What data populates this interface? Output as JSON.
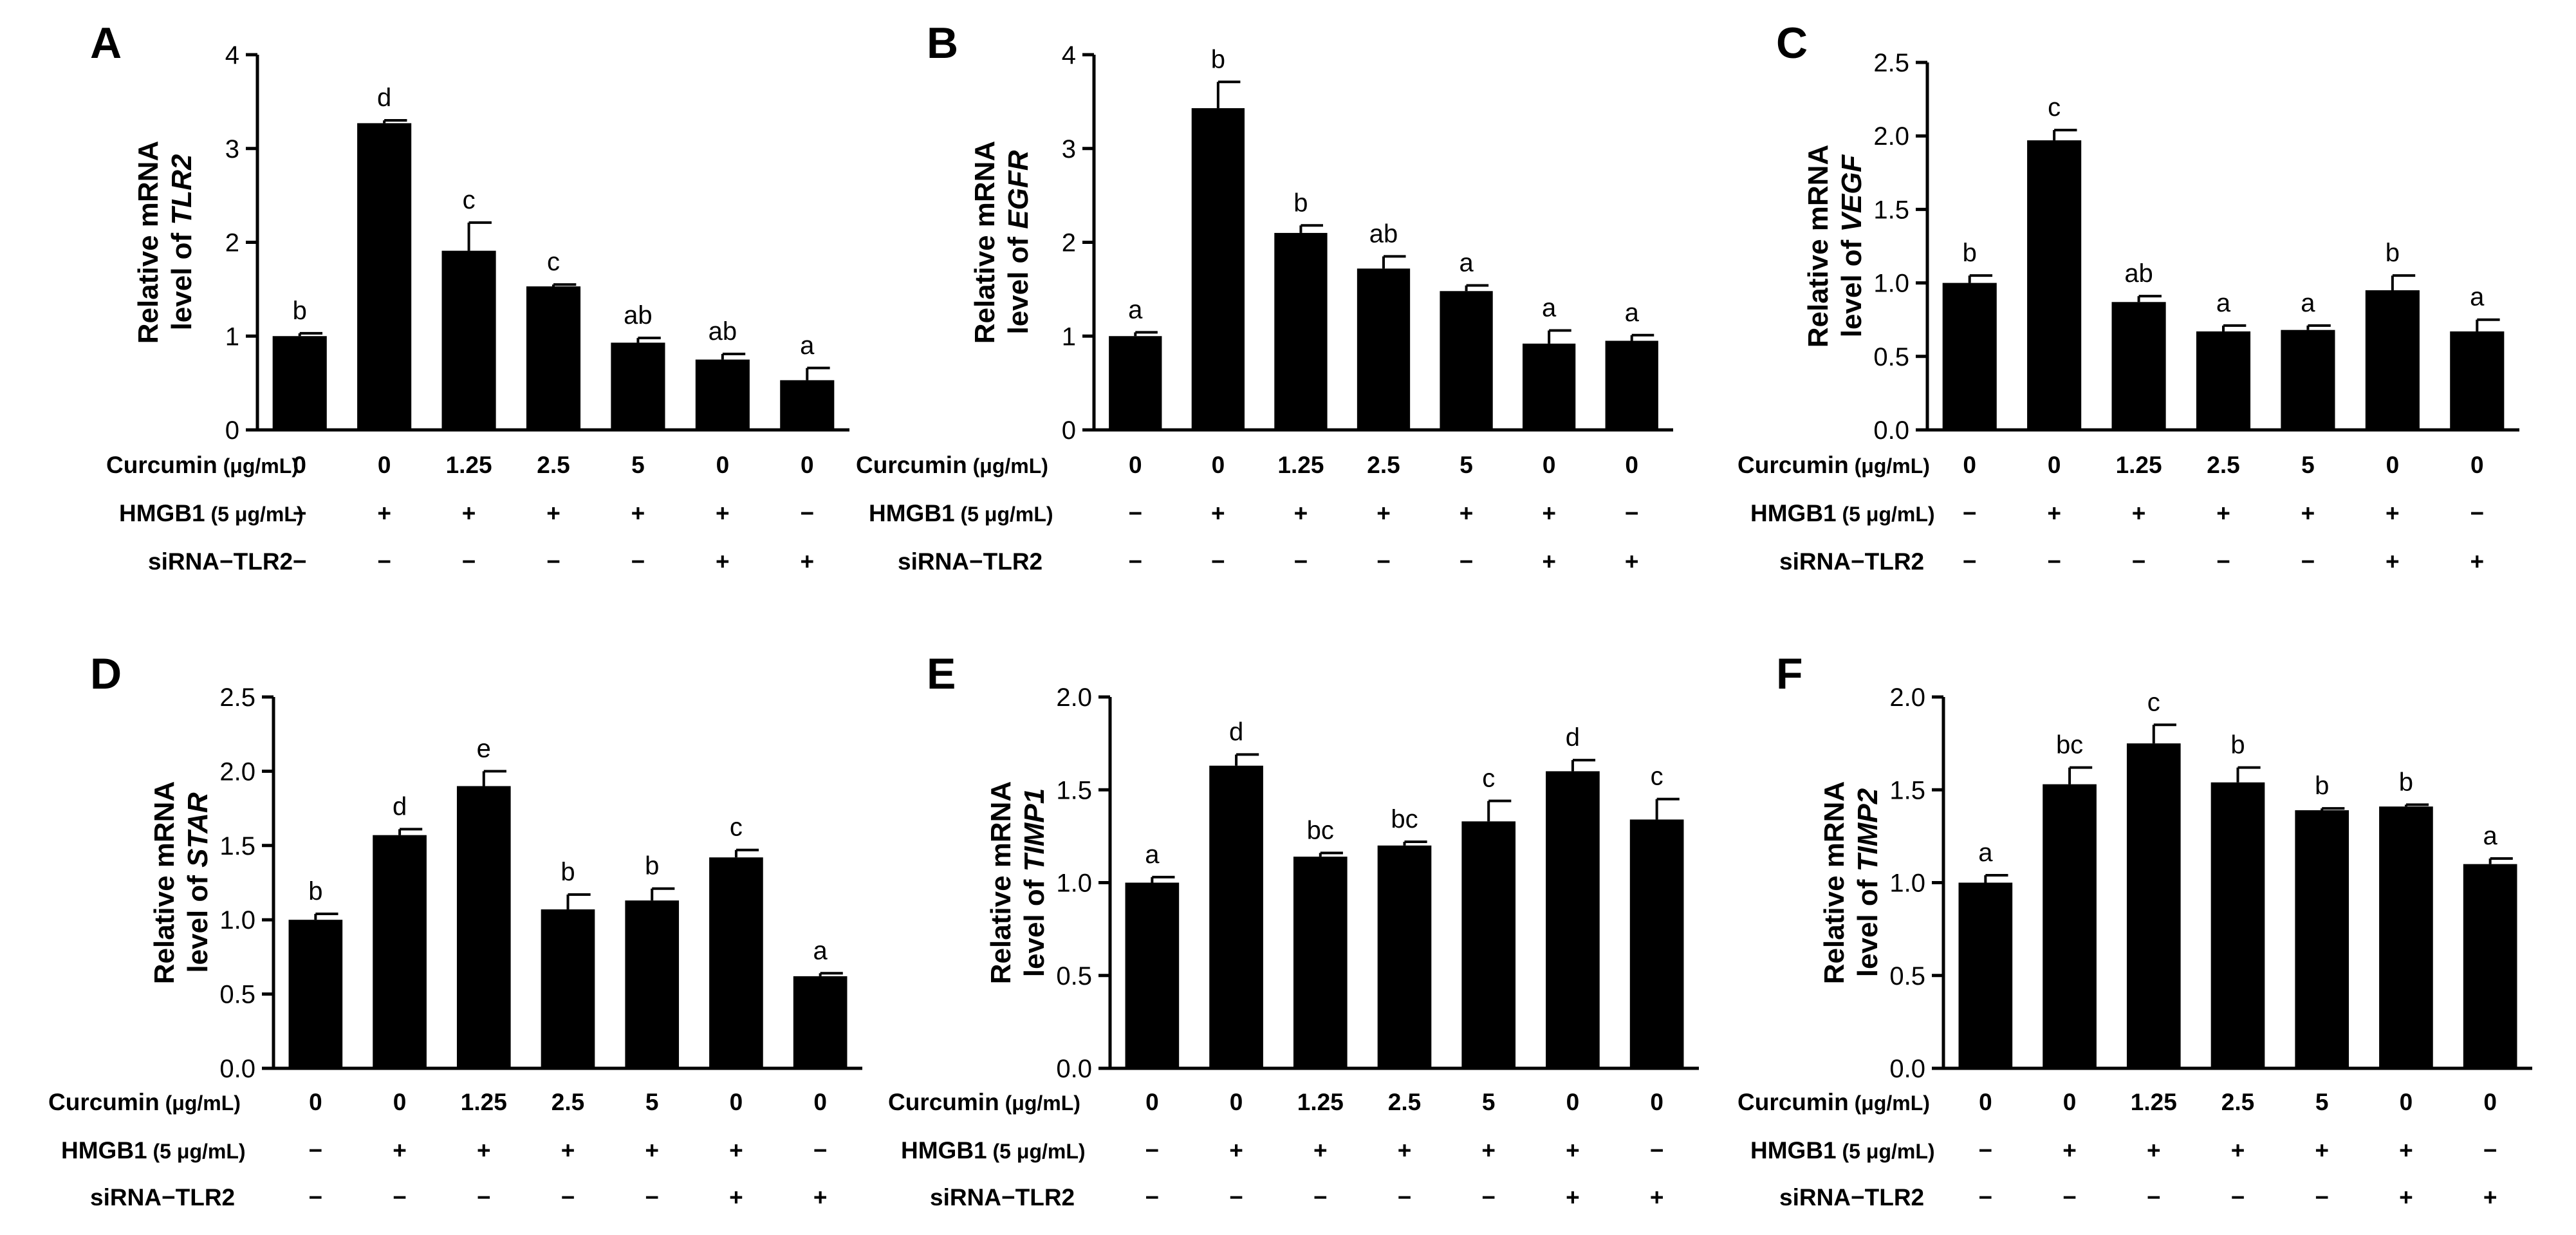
{
  "chart_data": [
    {
      "panel": "A",
      "type": "bar",
      "ylabel_prefix": "Relative mRNA",
      "ylabel_line2": "level of ",
      "gene": "TLR2",
      "ylim": [
        0,
        4
      ],
      "yticks": [
        "0",
        "1",
        "2",
        "3",
        "4"
      ],
      "values": [
        1.0,
        3.27,
        1.91,
        1.53,
        0.93,
        0.75,
        0.53
      ],
      "errors": [
        0.03,
        0.03,
        0.3,
        0.02,
        0.05,
        0.06,
        0.13
      ],
      "sig": [
        "b",
        "d",
        "c",
        "c",
        "ab",
        "ab",
        "a"
      ]
    },
    {
      "panel": "B",
      "type": "bar",
      "ylabel_prefix": "Relative mRNA",
      "ylabel_line2": "level of ",
      "gene": "EGFR",
      "ylim": [
        0,
        4
      ],
      "yticks": [
        "0",
        "1",
        "2",
        "3",
        "4"
      ],
      "values": [
        1.0,
        3.43,
        2.1,
        1.72,
        1.48,
        0.92,
        0.95
      ],
      "errors": [
        0.04,
        0.28,
        0.08,
        0.13,
        0.06,
        0.14,
        0.06
      ],
      "sig": [
        "a",
        "b",
        "b",
        "ab",
        "a",
        "a",
        "a"
      ]
    },
    {
      "panel": "C",
      "type": "bar",
      "ylabel_prefix": "Relative mRNA",
      "ylabel_line2": "level of ",
      "gene": "VEGF",
      "ylim": [
        0,
        2.5
      ],
      "yticks": [
        "0.0",
        "0.5",
        "1.0",
        "1.5",
        "2.0",
        "2.5"
      ],
      "values": [
        1.0,
        1.97,
        0.87,
        0.67,
        0.68,
        0.95,
        0.67
      ],
      "errors": [
        0.05,
        0.07,
        0.04,
        0.04,
        0.03,
        0.1,
        0.08
      ],
      "sig": [
        "b",
        "c",
        "ab",
        "a",
        "a",
        "b",
        "a"
      ]
    },
    {
      "panel": "D",
      "type": "bar",
      "ylabel_prefix": "Relative mRNA",
      "ylabel_line2": "level of ",
      "gene": "STAR",
      "ylim": [
        0,
        2.5
      ],
      "yticks": [
        "0.0",
        "0.5",
        "1.0",
        "1.5",
        "2.0",
        "2.5"
      ],
      "values": [
        1.0,
        1.57,
        1.9,
        1.07,
        1.13,
        1.42,
        0.62
      ],
      "errors": [
        0.04,
        0.04,
        0.1,
        0.1,
        0.08,
        0.05,
        0.02
      ],
      "sig": [
        "b",
        "d",
        "e",
        "b",
        "b",
        "c",
        "a"
      ]
    },
    {
      "panel": "E",
      "type": "bar",
      "ylabel_prefix": "Relative mRNA",
      "ylabel_line2": "level of ",
      "gene": "TIMP1",
      "ylim": [
        0,
        2.0
      ],
      "yticks": [
        "0.0",
        "0.5",
        "1.0",
        "1.5",
        "2.0"
      ],
      "values": [
        1.0,
        1.63,
        1.14,
        1.2,
        1.33,
        1.6,
        1.34
      ],
      "errors": [
        0.03,
        0.06,
        0.02,
        0.02,
        0.11,
        0.06,
        0.11
      ],
      "sig": [
        "a",
        "d",
        "bc",
        "bc",
        "c",
        "d",
        "c"
      ]
    },
    {
      "panel": "F",
      "type": "bar",
      "ylabel_prefix": "Relative mRNA",
      "ylabel_line2": "level of ",
      "gene": "TIMP2",
      "ylim": [
        0,
        2.0
      ],
      "yticks": [
        "0.0",
        "0.5",
        "1.0",
        "1.5",
        "2.0"
      ],
      "values": [
        1.0,
        1.53,
        1.75,
        1.54,
        1.39,
        1.41,
        1.1
      ],
      "errors": [
        0.04,
        0.09,
        0.1,
        0.08,
        0.01,
        0.01,
        0.03
      ],
      "sig": [
        "a",
        "bc",
        "c",
        "b",
        "b",
        "b",
        "a"
      ]
    }
  ],
  "conditions": {
    "curcumin_label": "Curcumin",
    "curcumin_unit": "(μg/mL)",
    "curcumin": [
      "0",
      "0",
      "1.25",
      "2.5",
      "5",
      "0",
      "0"
    ],
    "hmgb1_label": "HMGB1",
    "hmgb1_unit": "(5 μg/mL)",
    "hmgb1": [
      "−",
      "+",
      "+",
      "+",
      "+",
      "+",
      "−"
    ],
    "sirna_label": "siRNA−TLR2",
    "sirna": [
      "−",
      "−",
      "−",
      "−",
      "−",
      "+",
      "+"
    ]
  }
}
